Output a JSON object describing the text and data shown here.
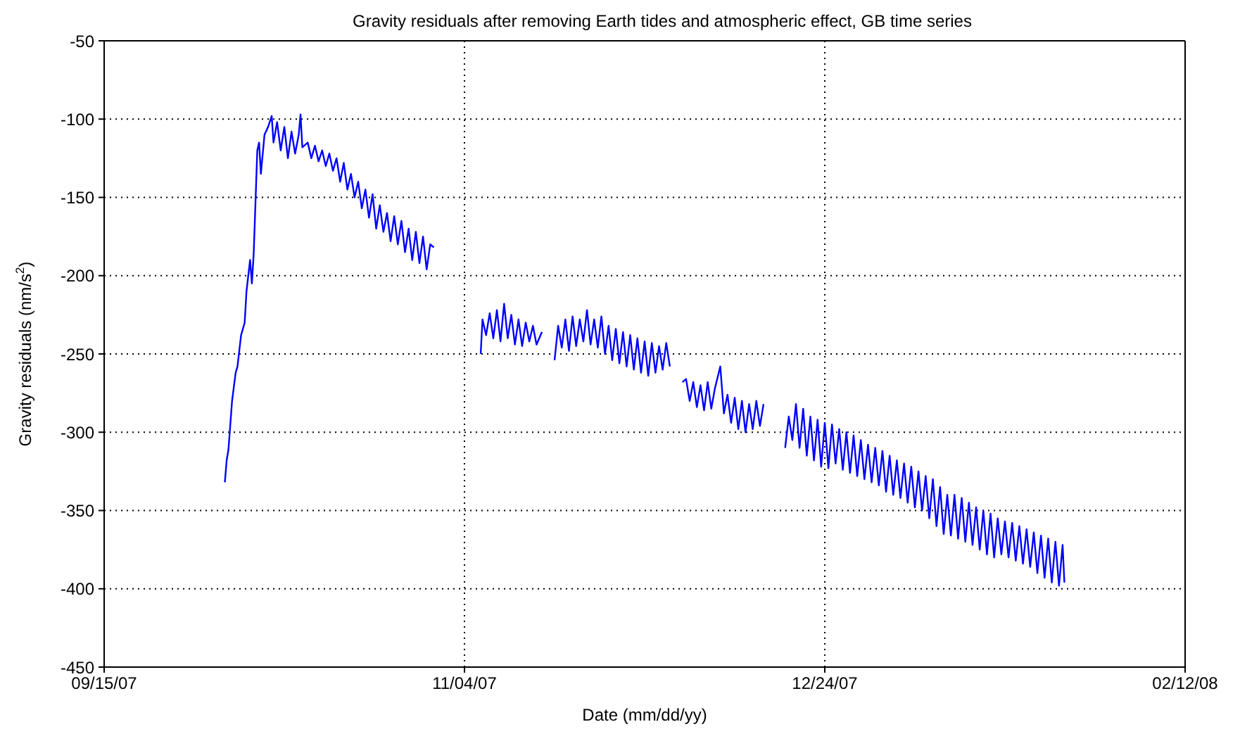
{
  "chart_data": {
    "type": "line",
    "title": "Gravity residuals after removing Earth tides and atmospheric effect, GB time series",
    "xlabel": "Date (mm/dd/yy)",
    "ylabel": "Gravity residuals (nm/s$^{2}$)",
    "xlim": [
      "2007-09-15",
      "2008-02-12"
    ],
    "xticks": [
      {
        "value": "2007-09-15",
        "label": "09/15/07"
      },
      {
        "value": "2007-11-04",
        "label": "11/04/07"
      },
      {
        "value": "2007-12-24",
        "label": "12/24/07"
      },
      {
        "value": "2008-02-12",
        "label": "02/12/08"
      }
    ],
    "ylim": [
      -450,
      -50
    ],
    "yticks": [
      -450,
      -400,
      -350,
      -300,
      -250,
      -200,
      -150,
      -100,
      -50
    ],
    "grid": true,
    "marker": "none",
    "line_style": "solid",
    "x": [
      "2007-10-01T18:00",
      "2007-10-02T00:00",
      "2007-10-02T06:00",
      "2007-10-02T18:00",
      "2007-10-03T06:00",
      "2007-10-03T12:00",
      "2007-10-04T00:00",
      "2007-10-04T12:00",
      "2007-10-04T18:00",
      "2007-10-05T00:00",
      "2007-10-05T06:00",
      "2007-10-05T12:00",
      "2007-10-05T18:00",
      "2007-10-06T00:00",
      "2007-10-06T06:00",
      "2007-10-06T12:00",
      "2007-10-06T18:00",
      "2007-10-07T06:00",
      "2007-10-07T18:00",
      "2007-10-08T06:00",
      "2007-10-08T12:00",
      "2007-10-09T00:00",
      "2007-10-09T12:00",
      "2007-10-10T00:00",
      "2007-10-10T12:00",
      "2007-10-11T00:00",
      "2007-10-11T12:00",
      "2007-10-12T00:00",
      "2007-10-12T06:00",
      "2007-10-12T12:00",
      "2007-10-13T06:00",
      "2007-10-13T18:00",
      "2007-10-14T06:00",
      "2007-10-14T18:00",
      "2007-10-15T06:00",
      "2007-10-15T18:00",
      "2007-10-16T06:00",
      "2007-10-16T18:00",
      "2007-10-17T06:00",
      "2007-10-17T18:00",
      "2007-10-18T06:00",
      "2007-10-18T18:00",
      "2007-10-19T06:00",
      "2007-10-19T18:00",
      "2007-10-20T06:00",
      "2007-10-20T18:00",
      "2007-10-21T06:00",
      "2007-10-21T18:00",
      "2007-10-22T06:00",
      "2007-10-22T18:00",
      "2007-10-23T06:00",
      "2007-10-23T18:00",
      "2007-10-24T06:00",
      "2007-10-24T18:00",
      "2007-10-25T06:00",
      "2007-10-25T18:00",
      "2007-10-26T06:00",
      "2007-10-26T18:00",
      "2007-10-27T06:00",
      "2007-10-27T18:00",
      "2007-10-28T06:00",
      "2007-10-28T18:00",
      "2007-10-29T06:00",
      "2007-10-29T18:00",
      "2007-10-30T06:00",
      "2007-10-30T18:00",
      "2007-11-02T00:00",
      "2007-11-06T06:00",
      "2007-11-06T12:00",
      "2007-11-07T00:00",
      "2007-11-07T12:00",
      "2007-11-08T00:00",
      "2007-11-08T12:00",
      "2007-11-09T00:00",
      "2007-11-09T12:00",
      "2007-11-10T00:00",
      "2007-11-10T12:00",
      "2007-11-11T00:00",
      "2007-11-11T12:00",
      "2007-11-12T00:00",
      "2007-11-12T12:00",
      "2007-11-13T00:00",
      "2007-11-13T12:00",
      "2007-11-14T00:00",
      "2007-11-14T18:00",
      "2007-11-15T12:00",
      "2007-11-16T12:00",
      "2007-11-17T00:00",
      "2007-11-17T12:00",
      "2007-11-18T00:00",
      "2007-11-18T12:00",
      "2007-11-19T00:00",
      "2007-11-19T12:00",
      "2007-11-20T00:00",
      "2007-11-20T12:00",
      "2007-11-21T00:00",
      "2007-11-21T12:00",
      "2007-11-22T00:00",
      "2007-11-22T12:00",
      "2007-11-23T00:00",
      "2007-11-23T12:00",
      "2007-11-24T00:00",
      "2007-11-24T12:00",
      "2007-11-25T00:00",
      "2007-11-25T12:00",
      "2007-11-26T00:00",
      "2007-11-26T12:00",
      "2007-11-27T00:00",
      "2007-11-27T12:00",
      "2007-11-28T00:00",
      "2007-11-28T12:00",
      "2007-11-29T00:00",
      "2007-11-29T12:00",
      "2007-11-30T00:00",
      "2007-11-30T12:00",
      "2007-12-01T00:00",
      "2007-12-01T12:00",
      "2007-12-02T00:00",
      "2007-12-02T12:00",
      "2007-12-03T12:00",
      "2007-12-04T06:00",
      "2007-12-04T18:00",
      "2007-12-05T06:00",
      "2007-12-05T18:00",
      "2007-12-06T06:00",
      "2007-12-06T18:00",
      "2007-12-07T06:00",
      "2007-12-07T18:00",
      "2007-12-08T06:00",
      "2007-12-08T18:00",
      "2007-12-09T12:00",
      "2007-12-10T00:00",
      "2007-12-10T12:00",
      "2007-12-11T00:00",
      "2007-12-11T12:00",
      "2007-12-12T00:00",
      "2007-12-12T12:00",
      "2007-12-13T00:00",
      "2007-12-13T12:00",
      "2007-12-14T00:00",
      "2007-12-14T12:00",
      "2007-12-15T00:00",
      "2007-12-15T12:00",
      "2007-12-17T00:00",
      "2007-12-18T12:00",
      "2007-12-19T00:00",
      "2007-12-19T12:00",
      "2007-12-20T00:00",
      "2007-12-20T12:00",
      "2007-12-21T00:00",
      "2007-12-21T12:00",
      "2007-12-22T00:00",
      "2007-12-22T12:00",
      "2007-12-23T00:00",
      "2007-12-23T12:00",
      "2007-12-24T00:00",
      "2007-12-24T12:00",
      "2007-12-25T00:00",
      "2007-12-25T12:00",
      "2007-12-26T00:00",
      "2007-12-26T12:00",
      "2007-12-27T00:00",
      "2007-12-27T12:00",
      "2007-12-28T00:00",
      "2007-12-28T12:00",
      "2007-12-29T00:00",
      "2007-12-29T12:00",
      "2007-12-30T00:00",
      "2007-12-30T12:00",
      "2007-12-31T00:00",
      "2007-12-31T12:00",
      "2008-01-01T00:00",
      "2008-01-01T12:00",
      "2008-01-02T00:00",
      "2008-01-02T12:00",
      "2008-01-03T00:00",
      "2008-01-03T12:00",
      "2008-01-04T00:00",
      "2008-01-04T12:00",
      "2008-01-05T00:00",
      "2008-01-05T12:00",
      "2008-01-06T00:00",
      "2008-01-06T12:00",
      "2008-01-07T00:00",
      "2008-01-07T12:00",
      "2008-01-08T00:00",
      "2008-01-08T12:00",
      "2008-01-09T00:00",
      "2008-01-09T12:00",
      "2008-01-10T00:00",
      "2008-01-10T12:00",
      "2008-01-11T00:00",
      "2008-01-11T12:00",
      "2008-01-12T00:00",
      "2008-01-12T12:00",
      "2008-01-13T00:00",
      "2008-01-13T12:00",
      "2008-01-14T00:00",
      "2008-01-14T12:00",
      "2008-01-15T00:00",
      "2008-01-15T12:00",
      "2008-01-16T00:00",
      "2008-01-16T12:00",
      "2008-01-17T00:00",
      "2008-01-17T12:00",
      "2008-01-18T00:00",
      "2008-01-18T12:00",
      "2008-01-19T00:00",
      "2008-01-19T12:00",
      "2008-01-20T00:00",
      "2008-01-20T12:00",
      "2008-01-21T00:00",
      "2008-01-21T12:00",
      "2008-01-22T00:00",
      "2008-01-22T12:00",
      "2008-01-23T00:00",
      "2008-01-23T12:00",
      "2008-01-24T00:00",
      "2008-01-24T12:00",
      "2008-01-25T00:00",
      "2008-01-25T12:00",
      "2008-01-26T00:00",
      "2008-01-26T06:00"
    ],
    "series": [
      {
        "color": "#0000ff",
        "values": [
          -332,
          -318,
          -311,
          -280,
          -262,
          -258,
          -238,
          -230,
          -210,
          -200,
          -190,
          -205,
          -186,
          -153,
          -120,
          -115,
          -135,
          -110,
          -105,
          -98,
          -115,
          -102,
          -120,
          -105,
          -125,
          -108,
          -122,
          -110,
          -97,
          -118,
          -115,
          -125,
          -117,
          -127,
          -120,
          -130,
          -122,
          -133,
          -125,
          -140,
          -128,
          -145,
          -135,
          -150,
          -140,
          -157,
          -145,
          -163,
          -148,
          -170,
          -155,
          -172,
          -160,
          -178,
          -162,
          -180,
          -165,
          -185,
          -170,
          -190,
          -172,
          -192,
          -175,
          -196,
          -180,
          -182,
          null,
          -250,
          -228,
          -238,
          -224,
          -240,
          -222,
          -242,
          -218,
          -240,
          -225,
          -244,
          -228,
          -245,
          -230,
          -242,
          -232,
          -244,
          -236,
          null,
          -254,
          -232,
          -246,
          -228,
          -248,
          -226,
          -245,
          -228,
          -242,
          -222,
          -244,
          -228,
          -246,
          -226,
          -250,
          -232,
          -254,
          -234,
          -256,
          -236,
          -258,
          -238,
          -260,
          -240,
          -262,
          -242,
          -264,
          -243,
          -262,
          -245,
          -260,
          -243,
          -258,
          null,
          -268,
          -266,
          -280,
          -268,
          -284,
          -270,
          -286,
          -268,
          -285,
          -272,
          -258,
          -288,
          -276,
          -294,
          -278,
          -298,
          -280,
          -300,
          -282,
          -298,
          -280,
          -296,
          -282,
          null,
          -310,
          -290,
          -305,
          -282,
          -310,
          -285,
          -315,
          -290,
          -318,
          -292,
          -322,
          -294,
          -323,
          -295,
          -320,
          -298,
          -324,
          -300,
          -326,
          -302,
          -328,
          -305,
          -330,
          -308,
          -332,
          -310,
          -334,
          -312,
          -338,
          -315,
          -340,
          -318,
          -342,
          -320,
          -345,
          -322,
          -348,
          -325,
          -350,
          -328,
          -355,
          -330,
          -360,
          -335,
          -365,
          -340,
          -366,
          -340,
          -368,
          -342,
          -370,
          -345,
          -372,
          -348,
          -375,
          -350,
          -378,
          -352,
          -380,
          -355,
          -378,
          -357,
          -380,
          -358,
          -382,
          -360,
          -384,
          -362,
          -386,
          -364,
          -390,
          -366,
          -393,
          -368,
          -396,
          -370,
          -398,
          -372,
          -396
        ]
      }
    ]
  }
}
